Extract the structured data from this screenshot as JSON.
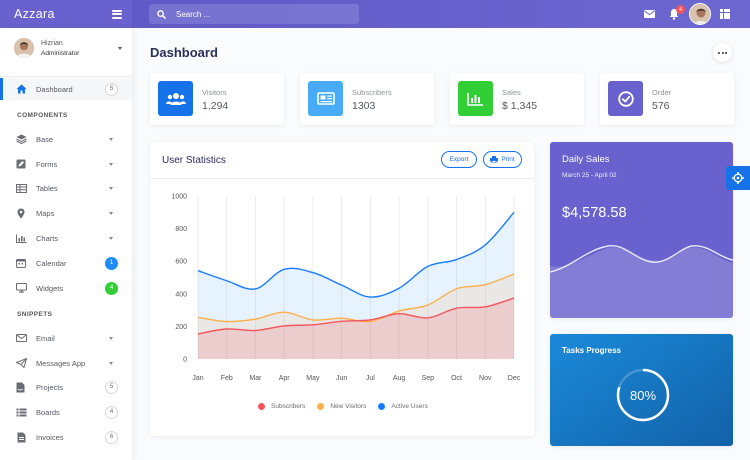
{
  "app": {
    "title": "Azzara"
  },
  "search": {
    "placeholder": "Search ..."
  },
  "navbar": {
    "notification_count": "4"
  },
  "user": {
    "name": "Hizrian",
    "role": "Administrator"
  },
  "sidebar": {
    "items": [
      {
        "label": "Dashboard",
        "count": "5",
        "icon": "home-icon"
      },
      {
        "label": "Base",
        "icon": "layers-icon"
      },
      {
        "label": "Forms",
        "icon": "pen-square-icon"
      },
      {
        "label": "Tables",
        "icon": "table-icon"
      },
      {
        "label": "Maps",
        "icon": "map-marker-icon"
      },
      {
        "label": "Charts",
        "icon": "chart-bar-icon"
      },
      {
        "label": "Calendar",
        "count": "1",
        "icon": "calendar-icon"
      },
      {
        "label": "Widgets",
        "count": "4",
        "icon": "desktop-icon"
      },
      {
        "label": "Email",
        "icon": "envelope-icon"
      },
      {
        "label": "Messages App",
        "icon": "paper-plane-icon"
      },
      {
        "label": "Projects",
        "count": "5",
        "icon": "file-signature-icon"
      },
      {
        "label": "Boards",
        "count": "4",
        "icon": "list-icon"
      },
      {
        "label": "Invoices",
        "count": "6",
        "icon": "file-invoice-icon"
      }
    ],
    "sections": [
      "COMPONENTS",
      "SNIPPETS"
    ]
  },
  "page": {
    "title": "Dashboard"
  },
  "stats": [
    {
      "label": "Visitors",
      "value": "1,294",
      "color": "#1572e8",
      "icon": "users-icon"
    },
    {
      "label": "Subscribers",
      "value": "1303",
      "color": "#48abf7",
      "icon": "newspaper-icon"
    },
    {
      "label": "Sales",
      "value": "$ 1,345",
      "color": "#31ce36",
      "icon": "chart-bar-icon"
    },
    {
      "label": "Order",
      "value": "576",
      "color": "#6861ce",
      "icon": "check-circle-icon"
    }
  ],
  "user_statistics": {
    "title": "User Statistics",
    "export_label": "Export",
    "print_label": "Print"
  },
  "chart_data": {
    "type": "area",
    "categories": [
      "Jan",
      "Feb",
      "Mar",
      "Apr",
      "May",
      "Jun",
      "Jul",
      "Aug",
      "Sep",
      "Oct",
      "Nov",
      "Dec"
    ],
    "ylim": [
      0,
      1000
    ],
    "yticks": [
      0,
      200,
      400,
      600,
      800,
      1000
    ],
    "grid": true,
    "legend": "bottom",
    "series": [
      {
        "name": "Subscribers",
        "color": "#f3545d",
        "values": [
          154,
          184,
          175,
          203,
          210,
          231,
          240,
          278,
          252,
          312,
          320,
          374
        ]
      },
      {
        "name": "New Visitors",
        "color": "#fdaf4b",
        "values": [
          256,
          230,
          245,
          287,
          240,
          250,
          230,
          295,
          331,
          431,
          456,
          521
        ]
      },
      {
        "name": "Active Users",
        "color": "#177dff",
        "values": [
          542,
          480,
          430,
          550,
          530,
          453,
          380,
          434,
          568,
          610,
          700,
          900
        ]
      }
    ]
  },
  "daily_sales": {
    "title": "Daily Sales",
    "period": "March 25 - April 02",
    "amount": "$4,578.58"
  },
  "tasks_progress": {
    "title": "Tasks Progress",
    "value": "80%",
    "fraction": 0.8
  }
}
